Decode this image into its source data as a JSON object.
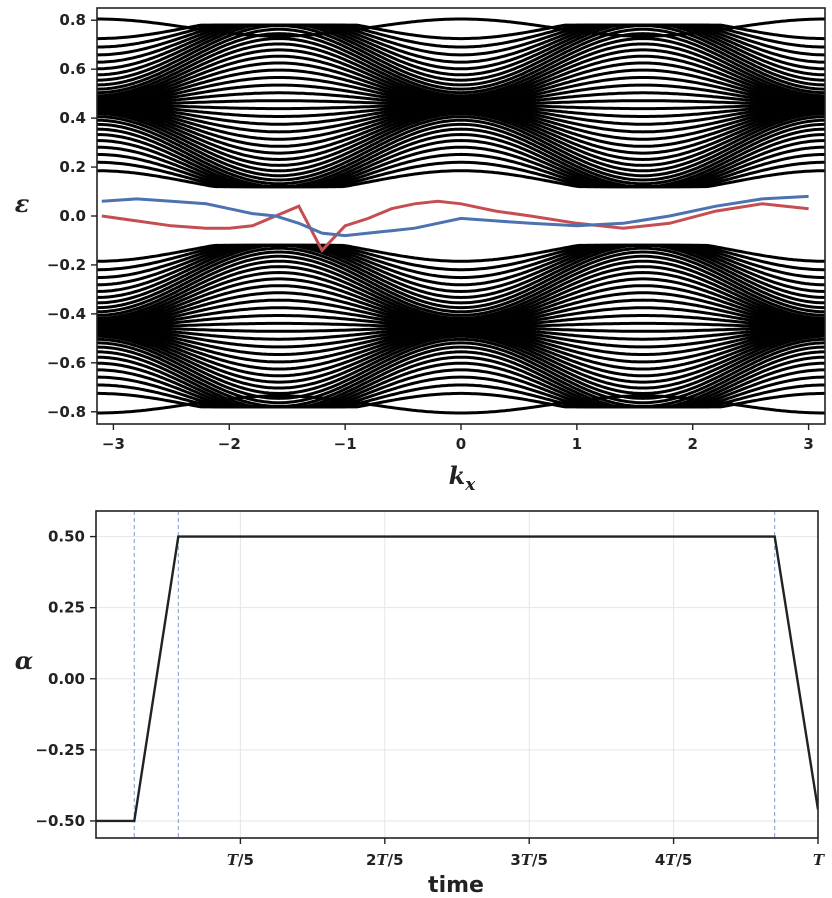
{
  "chart_data": [
    {
      "type": "line",
      "description": "Band structure vs k_x: dense black bulk bands with red and blue edge states",
      "xlabel": "k_x",
      "ylabel": "ε",
      "xlim": [
        -3.14159,
        3.14159
      ],
      "ylim": [
        -0.85,
        0.85
      ],
      "x_ticks": [
        -3,
        -2,
        -1,
        0,
        1,
        2,
        3
      ],
      "x_tick_labels": [
        "−3",
        "−2",
        "−1",
        "0",
        "1",
        "2",
        "3"
      ],
      "y_ticks": [
        -0.8,
        -0.6,
        -0.4,
        -0.2,
        0.0,
        0.2,
        0.4,
        0.6,
        0.8
      ],
      "y_tick_labels": [
        "−0.8",
        "−0.6",
        "−0.4",
        "−0.2",
        "0.0",
        "0.2",
        "0.4",
        "0.6",
        "0.8"
      ],
      "bulk_band_count": 40,
      "grid": false,
      "series": [
        {
          "name": "",
          "color": "#000000",
          "kind": "bulk bands"
        },
        {
          "name": "",
          "color": "#c44e52",
          "kind": "edge state",
          "x": [
            -3.1,
            -2.8,
            -2.5,
            -2.2,
            -2.0,
            -1.8,
            -1.6,
            -1.4,
            -1.2,
            -1.0,
            -0.8,
            -0.6,
            -0.4,
            -0.2,
            0.0,
            0.3,
            0.6,
            1.0,
            1.4,
            1.8,
            2.2,
            2.6,
            3.0
          ],
          "y": [
            0.0,
            -0.02,
            -0.04,
            -0.05,
            -0.05,
            -0.04,
            0.0,
            0.04,
            -0.14,
            -0.04,
            -0.01,
            0.03,
            0.05,
            0.06,
            0.05,
            0.02,
            0.0,
            -0.03,
            -0.05,
            -0.03,
            0.02,
            0.05,
            0.03
          ]
        },
        {
          "name": "",
          "color": "#4c72b0",
          "kind": "edge state",
          "x": [
            -3.1,
            -2.8,
            -2.5,
            -2.2,
            -2.0,
            -1.8,
            -1.6,
            -1.4,
            -1.2,
            -1.0,
            -0.8,
            -0.6,
            -0.4,
            -0.2,
            0.0,
            0.3,
            0.6,
            1.0,
            1.4,
            1.8,
            2.2,
            2.6,
            3.0
          ],
          "y": [
            0.06,
            0.07,
            0.06,
            0.05,
            0.03,
            0.01,
            0.0,
            -0.03,
            -0.07,
            -0.08,
            -0.07,
            -0.06,
            -0.05,
            -0.03,
            -0.01,
            -0.02,
            -0.03,
            -0.04,
            -0.03,
            0.0,
            0.04,
            0.07,
            0.08
          ]
        }
      ]
    },
    {
      "type": "line",
      "description": "Protocol α(t) over one period T",
      "xlabel": "time",
      "ylabel": "α",
      "xlim": [
        0,
        1
      ],
      "ylim": [
        -0.56,
        0.59
      ],
      "x_ticks": [
        0.2,
        0.4,
        0.6,
        0.8,
        1.0
      ],
      "x_tick_labels": [
        "T/5",
        "2T/5",
        "3T/5",
        "4T/5",
        "T"
      ],
      "y_ticks": [
        -0.5,
        -0.25,
        0.0,
        0.25,
        0.5
      ],
      "y_tick_labels": [
        "−0.50",
        "−0.25",
        "0.00",
        "0.25",
        "0.50"
      ],
      "grid": true,
      "vlines": [
        0.053,
        0.114,
        0.94
      ],
      "series": [
        {
          "name": "",
          "color": "#222222",
          "x": [
            0.0,
            0.053,
            0.114,
            0.94,
            1.0
          ],
          "y": [
            -0.5,
            -0.5,
            0.5,
            0.5,
            -0.46
          ]
        }
      ]
    }
  ]
}
